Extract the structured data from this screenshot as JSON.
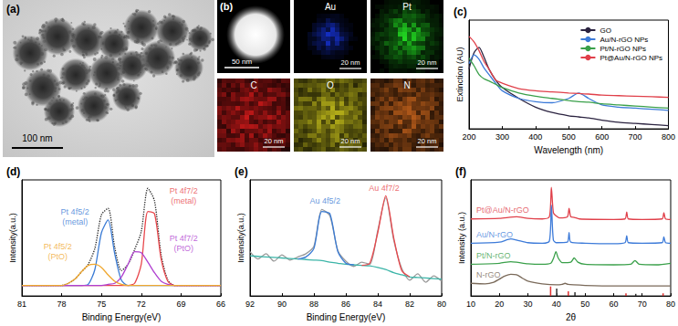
{
  "micrographs": {
    "a": {
      "label": "(a)",
      "scale_bar": "100 nm"
    },
    "b": {
      "label": "(b)",
      "haadf_scale_bar": "50 nm",
      "maps": [
        {
          "element": "Au",
          "scale_bar": "20 nm",
          "color": "#1a3cff"
        },
        {
          "element": "Pt",
          "scale_bar": "20 nm",
          "color": "#22dd22"
        },
        {
          "element": "C",
          "scale_bar": "20 nm",
          "color": "#ff2020"
        },
        {
          "element": "O",
          "scale_bar": "20 nm",
          "color": "#e8e020"
        },
        {
          "element": "N",
          "scale_bar": "20 nm",
          "color": "#e07020"
        }
      ]
    }
  },
  "chart_data": [
    {
      "type": "line",
      "title": "(c)",
      "x_label": "Wavelength (nm)",
      "y_label": "Extinction (AU)",
      "x": [
        200,
        215,
        230,
        245,
        260,
        280,
        300,
        350,
        400,
        450,
        500,
        530,
        560,
        600,
        650,
        700,
        750,
        800
      ],
      "series": [
        {
          "name": "GO",
          "color": "#2b2340",
          "values": [
            0.55,
            0.7,
            0.75,
            0.66,
            0.55,
            0.45,
            0.38,
            0.28,
            0.2,
            0.15,
            0.12,
            0.11,
            0.1,
            0.08,
            0.06,
            0.05,
            0.04,
            0.03
          ]
        },
        {
          "name": "Au/N-rGO NPs",
          "color": "#3d7bd9",
          "values": [
            0.6,
            0.68,
            0.64,
            0.56,
            0.5,
            0.42,
            0.35,
            0.28,
            0.25,
            0.24,
            0.28,
            0.33,
            0.28,
            0.22,
            0.2,
            0.19,
            0.18,
            0.17
          ]
        },
        {
          "name": "Pt/N-rGO NPs",
          "color": "#3aa04a",
          "values": [
            0.65,
            0.58,
            0.5,
            0.46,
            0.44,
            0.41,
            0.38,
            0.33,
            0.3,
            0.28,
            0.26,
            0.25,
            0.245,
            0.23,
            0.22,
            0.21,
            0.2,
            0.19
          ]
        },
        {
          "name": "Pt@Au/N-rGO NPs",
          "color": "#e0404a",
          "values": [
            0.85,
            0.8,
            0.72,
            0.62,
            0.55,
            0.45,
            0.42,
            0.37,
            0.35,
            0.34,
            0.33,
            0.325,
            0.32,
            0.31,
            0.305,
            0.3,
            0.295,
            0.29
          ]
        }
      ],
      "xlim": [
        200,
        800
      ],
      "xticks": [
        200,
        300,
        400,
        500,
        600,
        700,
        800
      ],
      "ylim": [
        0,
        1
      ],
      "grid": false,
      "legend": "upper right",
      "tick_labels": "x"
    },
    {
      "type": "line",
      "title": "(d)",
      "x_label": "Binding Energy(eV)",
      "y_label": "Intensity(a.u.)",
      "x": [
        81,
        80,
        79,
        78,
        77.5,
        77,
        76.5,
        76,
        75.5,
        75,
        74.5,
        74,
        73.5,
        73,
        72.5,
        72,
        71.5,
        71,
        70.5,
        70,
        69.5,
        69,
        68,
        67,
        66
      ],
      "series": [
        {
          "color": "#222222",
          "line_style": "dotted",
          "values": [
            0.1,
            0.1,
            0.1,
            0.1,
            0.12,
            0.16,
            0.23,
            0.3,
            0.45,
            0.77,
            0.83,
            0.46,
            0.24,
            0.3,
            0.44,
            0.61,
            1.02,
            0.9,
            0.39,
            0.15,
            0.1,
            0.1,
            0.1,
            0.1,
            0.1
          ]
        },
        {
          "color": "#3a7bd5",
          "values": [
            0.1,
            0.1,
            0.1,
            0.1,
            0.1,
            0.1,
            0.1,
            0.11,
            0.25,
            0.6,
            0.72,
            0.4,
            0.15,
            0.1,
            0.1,
            0.1,
            0.1,
            0.1,
            0.1,
            0.1,
            0.1,
            0.1,
            0.1,
            0.1,
            0.1
          ]
        },
        {
          "color": "#e8474c",
          "values": [
            0.1,
            0.1,
            0.1,
            0.1,
            0.1,
            0.1,
            0.1,
            0.1,
            0.1,
            0.1,
            0.1,
            0.1,
            0.1,
            0.1,
            0.12,
            0.3,
            0.8,
            0.78,
            0.35,
            0.14,
            0.1,
            0.1,
            0.1,
            0.1,
            0.1
          ]
        },
        {
          "color": "#b040d0",
          "values": [
            0.1,
            0.1,
            0.1,
            0.1,
            0.1,
            0.1,
            0.1,
            0.1,
            0.1,
            0.1,
            0.11,
            0.12,
            0.18,
            0.3,
            0.42,
            0.41,
            0.32,
            0.22,
            0.14,
            0.11,
            0.1,
            0.1,
            0.1,
            0.1,
            0.1
          ]
        },
        {
          "color": "#f0a830",
          "values": [
            0.1,
            0.1,
            0.1,
            0.1,
            0.12,
            0.16,
            0.23,
            0.29,
            0.3,
            0.27,
            0.2,
            0.14,
            0.11,
            0.1,
            0.1,
            0.1,
            0.1,
            0.1,
            0.1,
            0.1,
            0.1,
            0.1,
            0.1,
            0.1,
            0.1
          ]
        }
      ],
      "annotations": [
        {
          "text": "Pt 4f5/2\n(metal)",
          "x": 77,
          "y": 0.75,
          "color": "#3a7bd5"
        },
        {
          "text": "Pt 4f5/2\n(PtO)",
          "x": 78.3,
          "y": 0.42,
          "color": "#f0a830"
        },
        {
          "text": "Pt 4f7/2\n(metal)",
          "x": 68.8,
          "y": 0.95,
          "color": "#e8474c"
        },
        {
          "text": "Pt 4f7/2\n(PtO)",
          "x": 68.8,
          "y": 0.5,
          "color": "#b040d0"
        }
      ],
      "xlim": [
        81,
        66
      ],
      "xticks": [
        81,
        78,
        75,
        72,
        69,
        66
      ],
      "ylim": [
        0,
        1.1
      ],
      "grid": false,
      "tick_labels": "x"
    },
    {
      "type": "line",
      "title": "(e)",
      "x_label": "Binding Energy(eV)",
      "y_label": "Intensity(a.u.)",
      "x": [
        92,
        91.5,
        91,
        90.5,
        90,
        89.5,
        89,
        88.5,
        88,
        87.5,
        87,
        86.5,
        86,
        85.5,
        85,
        84.5,
        84,
        83.5,
        83,
        82.5,
        82,
        81.5,
        81,
        80.5,
        80
      ],
      "series": [
        {
          "color": "#9a9a9a",
          "values": [
            0.42,
            0.35,
            0.4,
            0.33,
            0.39,
            0.34,
            0.37,
            0.4,
            0.47,
            0.82,
            0.76,
            0.43,
            0.33,
            0.28,
            0.32,
            0.3,
            0.62,
            0.93,
            0.53,
            0.26,
            0.15,
            0.21,
            0.13,
            0.19,
            0.14
          ]
        },
        {
          "color": "#3cb5a8",
          "values": [
            0.38,
            0.375,
            0.37,
            0.365,
            0.36,
            0.355,
            0.35,
            0.345,
            0.34,
            0.335,
            0.32,
            0.31,
            0.3,
            0.295,
            0.29,
            0.285,
            0.27,
            0.25,
            0.22,
            0.2,
            0.18,
            0.175,
            0.17,
            0.165,
            0.16
          ]
        },
        {
          "color": "#3a7bd5",
          "values": [
            null,
            null,
            null,
            null,
            null,
            null,
            0.35,
            0.37,
            0.45,
            0.8,
            0.78,
            0.42,
            0.31,
            0.295,
            null,
            null,
            null,
            null,
            null,
            null,
            null,
            null,
            null,
            null,
            null
          ]
        },
        {
          "color": "#e8474c",
          "values": [
            null,
            null,
            null,
            null,
            null,
            null,
            null,
            null,
            null,
            null,
            null,
            null,
            null,
            null,
            0.29,
            0.31,
            0.6,
            0.95,
            0.55,
            0.24,
            0.18,
            null,
            null,
            null,
            null
          ]
        }
      ],
      "annotations": [
        {
          "text": "Au 4f5/2",
          "x": 87.3,
          "y": 0.9,
          "color": "#3a7bd5"
        },
        {
          "text": "Au 4f7/2",
          "x": 83.6,
          "y": 1.02,
          "color": "#e8474c"
        }
      ],
      "xlim": [
        92,
        80
      ],
      "xticks": [
        92,
        90,
        88,
        86,
        84,
        82,
        80
      ],
      "ylim": [
        0,
        1.1
      ],
      "grid": false,
      "tick_labels": "x"
    },
    {
      "type": "line",
      "title": "(f)",
      "x_label": "2θ",
      "y_label": "Intensity (a.u.)",
      "series": [
        {
          "name": "Pt@Au/N-rGO",
          "color": "#e0404a",
          "x": [
            10,
            20,
            26,
            30,
            35,
            37.5,
            38.2,
            38.9,
            39.8,
            41,
            43.8,
            44.4,
            45,
            46.2,
            48,
            60,
            64,
            64.6,
            65.2,
            70,
            77,
            77.6,
            78.2,
            80
          ],
          "values": [
            7.3,
            7.35,
            7.5,
            7.35,
            7.3,
            7.5,
            10.3,
            7.9,
            7.6,
            7.4,
            7.5,
            8.3,
            7.5,
            7.45,
            7.3,
            7.25,
            7.3,
            7.95,
            7.3,
            7.25,
            7.3,
            7.9,
            7.3,
            7.25
          ]
        },
        {
          "name": "Au/N-rGO",
          "color": "#3d7bd9",
          "x": [
            10,
            20,
            24,
            26,
            30,
            35,
            37.5,
            38.2,
            38.9,
            40,
            43.8,
            44.4,
            45,
            50,
            60,
            64,
            64.6,
            65.2,
            70,
            77,
            77.6,
            78.2,
            80
          ],
          "values": [
            5.0,
            5.1,
            5.4,
            5.3,
            5.05,
            5.0,
            5.2,
            8.6,
            5.3,
            5.05,
            5.1,
            6.0,
            5.1,
            5.0,
            4.95,
            5.05,
            5.7,
            5.05,
            5.0,
            5.05,
            5.6,
            5.05,
            5.0
          ]
        },
        {
          "name": "Pt/N-rGO",
          "color": "#3aa04a",
          "x": [
            10,
            20,
            24,
            26,
            30,
            35,
            38,
            39,
            39.8,
            40.6,
            42,
            45,
            46.2,
            47.5,
            50,
            60,
            66,
            67.5,
            69,
            75,
            80
          ],
          "values": [
            3.0,
            3.1,
            3.25,
            3.2,
            3.05,
            3.0,
            3.1,
            3.6,
            4.2,
            3.6,
            3.15,
            3.2,
            3.6,
            3.2,
            3.0,
            2.95,
            3.0,
            3.35,
            3.0,
            2.95,
            3.1
          ]
        },
        {
          "name": "N-rGO",
          "color": "#7a6a5a",
          "x": [
            10,
            15,
            18,
            20,
            22,
            24,
            26,
            28,
            30,
            35,
            40,
            42,
            43,
            44,
            46,
            50,
            60,
            70,
            80
          ],
          "values": [
            1.2,
            1.15,
            1.3,
            1.6,
            1.9,
            2.05,
            2.0,
            1.7,
            1.4,
            1.15,
            1.05,
            1.1,
            1.2,
            1.1,
            1.05,
            1.0,
            0.95,
            0.95,
            0.95
          ]
        },
        {
          "type": "bar",
          "color": "#e03030",
          "x": [
            38.2,
            44.4,
            64.6,
            77.6
          ],
          "values": [
            0.9,
            0.45,
            0.25,
            0.25
          ]
        },
        {
          "type": "bar",
          "color": "#303030",
          "x": [
            39.8,
            46.2,
            67.5
          ],
          "values": [
            0.7,
            0.35,
            0.2
          ]
        }
      ],
      "xlim": [
        10,
        80
      ],
      "xticks": [
        10,
        20,
        30,
        40,
        50,
        60,
        70,
        80
      ],
      "ylim": [
        0,
        11
      ],
      "grid": false,
      "tick_labels": "x"
    }
  ]
}
